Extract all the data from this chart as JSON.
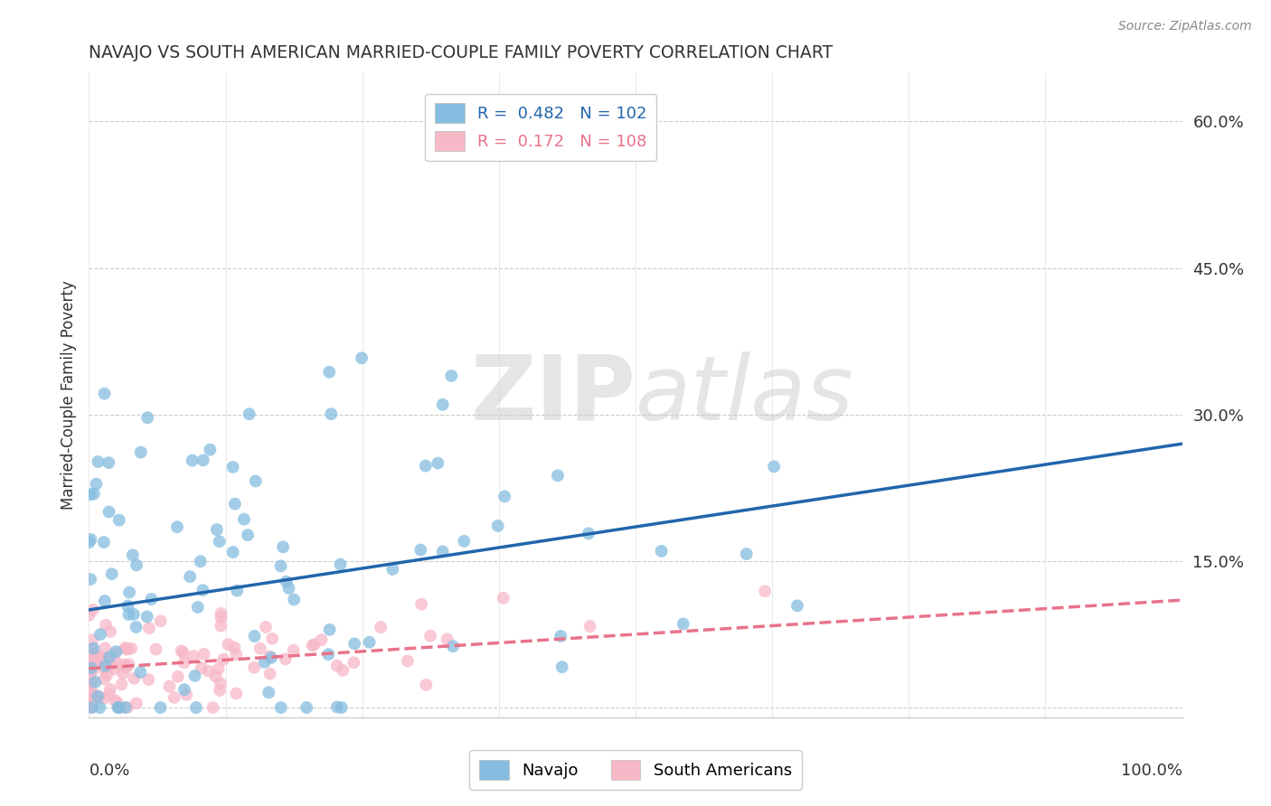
{
  "title": "NAVAJO VS SOUTH AMERICAN MARRIED-COUPLE FAMILY POVERTY CORRELATION CHART",
  "source": "Source: ZipAtlas.com",
  "ylabel": "Married-Couple Family Poverty",
  "watermark_bold": "ZIP",
  "watermark_light": "atlas",
  "navajo_color": "#85bde0",
  "navajo_color_edge": "#85bde0",
  "south_color": "#f7b8c8",
  "south_color_edge": "#f7b8c8",
  "navajo_line_color": "#2166ac",
  "south_line_color": "#e8738a",
  "navajo_R": 0.482,
  "navajo_N": 102,
  "south_R": 0.172,
  "south_N": 108,
  "xlim": [
    0,
    1
  ],
  "ylim": [
    -0.01,
    0.65
  ],
  "yticks": [
    0.0,
    0.15,
    0.3,
    0.45,
    0.6
  ],
  "ytick_labels": [
    "",
    "15.0%",
    "30.0%",
    "45.0%",
    "60.0%"
  ],
  "nav_line_x0": 0.0,
  "nav_line_y0": 0.1,
  "nav_line_x1": 1.0,
  "nav_line_y1": 0.27,
  "south_line_x0": 0.0,
  "south_line_y0": 0.04,
  "south_line_x1": 1.0,
  "south_line_y1": 0.11
}
